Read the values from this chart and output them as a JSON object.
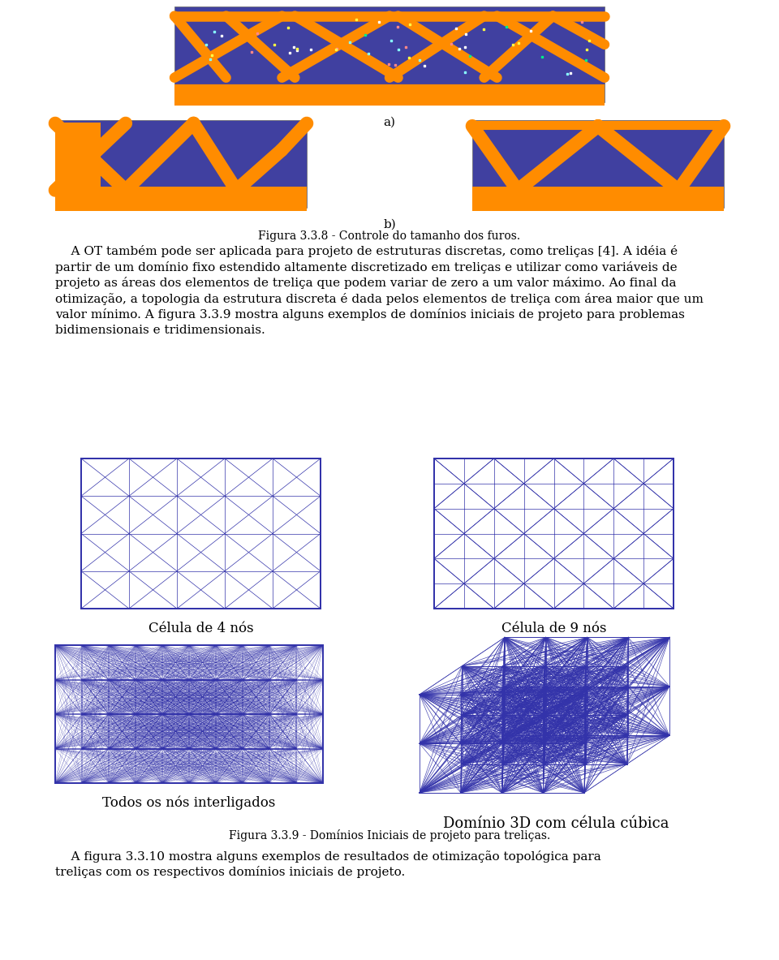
{
  "background_color": "#ffffff",
  "fig_label_a": "a)",
  "fig_label_b": "b)",
  "fig_caption_338": "Figura 3.3.8 - Controle do tamanho dos furos.",
  "fig_caption_339": "Figura 3.3.9 - Domínios Iniciais de projeto para treliças.",
  "label_4nos": "Célula de 4 nós",
  "label_9nos": "Célula de 9 nós",
  "label_todos": "Todos os nós interligados",
  "label_3d": "Domínio 3D com célula cúbica",
  "paragraph1_indent": "    A OT também pode ser aplicada para projeto de estruturas discretas, como treliças [4]. A idéia é",
  "paragraph1_line2": "partir de um domínio fixo estendido altamente discretizado em treliças e utilizar como variáveis de",
  "paragraph1_line3": "projeto as áreas dos elementos de treliça que podem variar de zero a um valor máximo. Ao final da",
  "paragraph1_line4": "otimização, a topologia da estrutura discreta é dada pelos elementos de treliça com área maior que um",
  "paragraph1_line5": "valor mínimo. A figura 3.3.9 mostra alguns exemplos de domínios iniciais de projeto para problemas",
  "paragraph1_line6": "bidimensionais e tridimensionais.",
  "paragraph2_indent": "    A figura 3.3.10 mostra alguns exemplos de resultados de otimização topológica para",
  "paragraph2_line2": "treliças com os respectivos domínios iniciais de projeto.",
  "truss_color": "#3333aa",
  "truss_lw_thin": 0.5,
  "truss_lw_thick": 1.4,
  "img_bg_orange": "#FF8C00",
  "img_bg_blue": "#4040a0",
  "text_fontsize": 11.0,
  "caption_fontsize": 10.0,
  "label_fontsize": 12.0
}
